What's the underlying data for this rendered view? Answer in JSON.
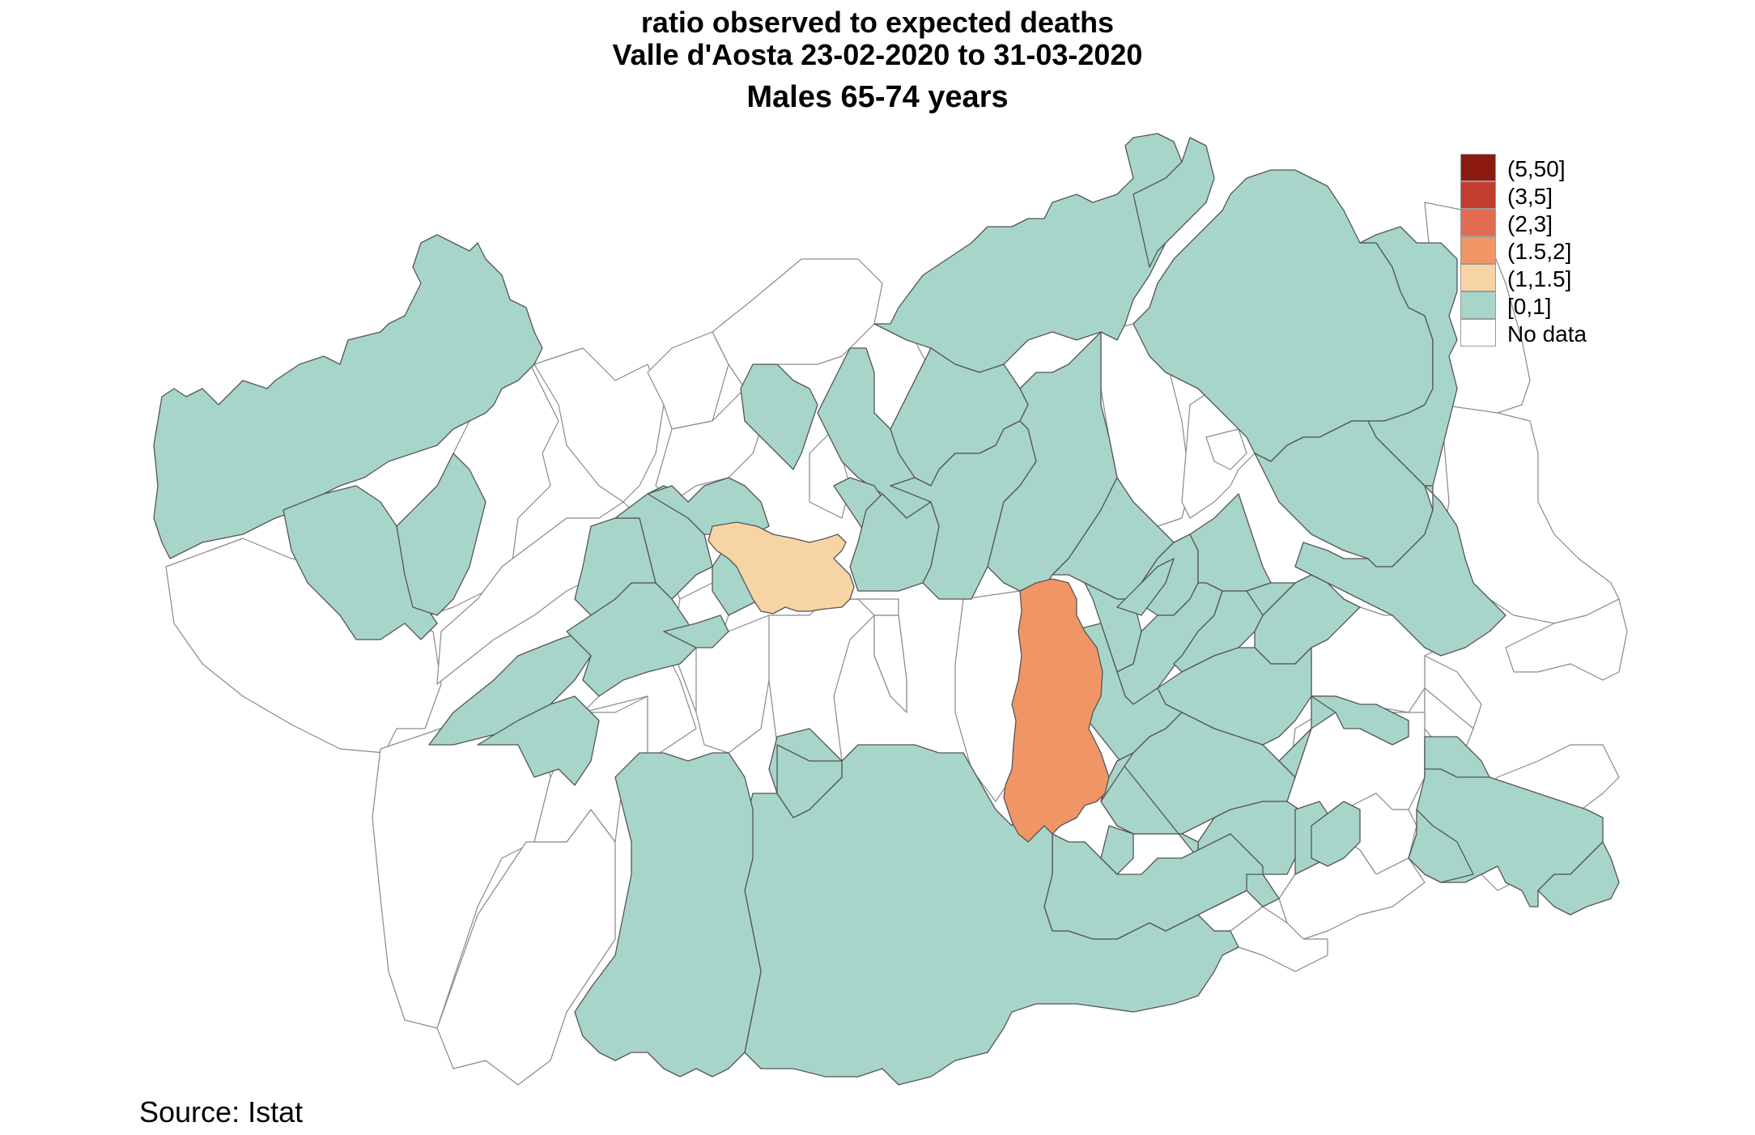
{
  "title": {
    "line1": "ratio observed to expected deaths",
    "line2": "Valle d'Aosta 23-02-2020 to 31-03-2020",
    "subtitle": "Males 65-74 years"
  },
  "legend": {
    "items": [
      {
        "label": "(5,50]",
        "color": "#8b1a10"
      },
      {
        "label": "(3,5]",
        "color": "#c13d2e"
      },
      {
        "label": "(2,3]",
        "color": "#e06b50"
      },
      {
        "label": "(1.5,2]",
        "color": "#f09566"
      },
      {
        "label": "(1,1.5]",
        "color": "#f7d4a6"
      },
      {
        "label": "[0,1]",
        "color": "#a8d5ca"
      },
      {
        "label": "No data",
        "color": "#ffffff"
      }
    ]
  },
  "source": "Source: Istat",
  "colors": {
    "low": "#a8d5ca",
    "mid": "#f7d4a6",
    "high": "#f09566",
    "nodata": "#ffffff",
    "outline_filled": "#555555",
    "outline_empty": "#8a8a8a"
  }
}
